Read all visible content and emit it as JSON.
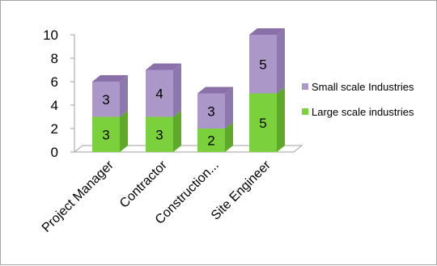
{
  "chart_data": {
    "type": "bar",
    "stacked": true,
    "style": "3d-column",
    "categories": [
      "Project Manager",
      "Contractor",
      "Construction...",
      "Site Engineer"
    ],
    "series": [
      {
        "name": "Large scale industries",
        "values": [
          3,
          3,
          2,
          5
        ],
        "color": "#7ad13b",
        "side_color": "#5ea82a",
        "top_color": "#9ee06a"
      },
      {
        "name": "Small scale Industries",
        "values": [
          3,
          4,
          3,
          5
        ],
        "color": "#ab98c9",
        "side_color": "#8d78ad",
        "top_color": "#8a6fa8"
      }
    ],
    "ylim": [
      0,
      10
    ],
    "yticks": [
      0,
      2,
      4,
      6,
      8,
      10
    ],
    "title": "",
    "xlabel": "",
    "ylabel": "",
    "grid": false,
    "data_labels": true,
    "legend_position": "right",
    "legend_order": [
      "Small scale Industries",
      "Large scale industries"
    ]
  }
}
